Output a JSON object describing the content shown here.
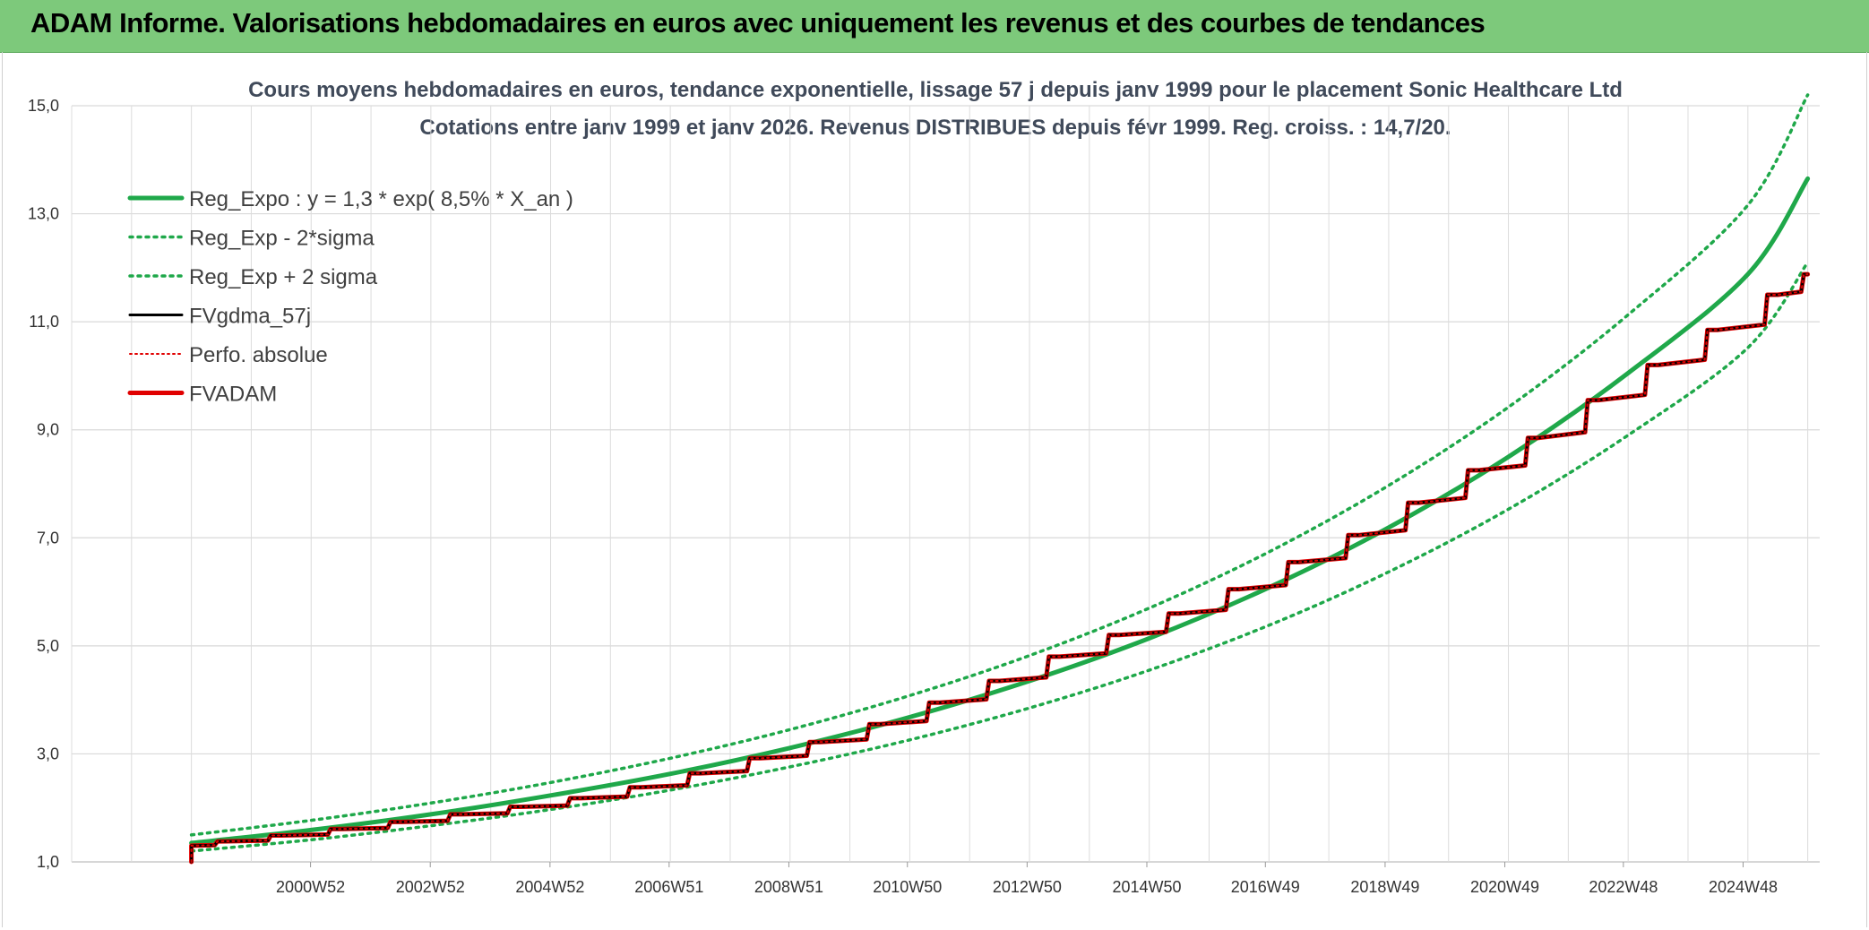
{
  "header": {
    "title": "ADAM Informe. Valorisations hebdomadaires en euros avec uniquement les revenus et des courbes de tendances"
  },
  "chart_data": {
    "type": "line",
    "title": "Cours moyens hebdomadaires en euros, tendance exponentielle, lissage 57 j depuis janv 1999 pour le placement Sonic Healthcare Ltd",
    "subtitle": "Cotations entre janv 1999 et janv 2026. Revenus DISTRIBUES depuis févr 1999. Reg. croiss. : 14,7/20.",
    "xlabel": "",
    "ylabel": "",
    "ylim": [
      1.0,
      15.0
    ],
    "y_ticks": [
      "1,0",
      "3,0",
      "5,0",
      "7,0",
      "9,0",
      "11,0",
      "13,0",
      "15,0"
    ],
    "x_ticks": [
      "2000W52",
      "2002W52",
      "2004W52",
      "2006W51",
      "2008W51",
      "2010W50",
      "2012W50",
      "2014W50",
      "2016W49",
      "2018W49",
      "2020W49",
      "2022W48",
      "2024W48"
    ],
    "x_tick_years": [
      2000.99,
      2002.99,
      2004.99,
      2006.98,
      2008.98,
      2010.96,
      2012.96,
      2014.96,
      2016.94,
      2018.94,
      2020.94,
      2022.92,
      2024.92
    ],
    "x_range": [
      1997.0,
      2026.2
    ],
    "legend_position": "top-left",
    "grid": true,
    "series": [
      {
        "name": "Reg_Expo : y = 1,3 * exp( 8,5% *  X_an )",
        "color": "#1fa84a",
        "style": "solid",
        "x": [
          1999.0,
          2001.0,
          2003.0,
          2005.0,
          2007.0,
          2009.0,
          2011.0,
          2013.0,
          2015.0,
          2017.0,
          2019.0,
          2021.0,
          2023.0,
          2025.0,
          2026.0
        ],
        "y": [
          1.35,
          1.59,
          1.88,
          2.23,
          2.63,
          3.11,
          3.68,
          4.35,
          5.14,
          6.08,
          7.19,
          8.5,
          10.05,
          11.88,
          13.65
        ]
      },
      {
        "name": "Reg_Exp - 2*sigma",
        "color": "#1fa84a",
        "style": "dotted",
        "x": [
          1999.0,
          2001.0,
          2003.0,
          2005.0,
          2007.0,
          2009.0,
          2011.0,
          2013.0,
          2015.0,
          2017.0,
          2019.0,
          2021.0,
          2023.0,
          2025.0,
          2026.0
        ],
        "y": [
          1.2,
          1.41,
          1.67,
          1.97,
          2.33,
          2.76,
          3.26,
          3.85,
          4.55,
          5.38,
          6.37,
          7.53,
          8.9,
          10.52,
          12.1
        ]
      },
      {
        "name": "Reg_Exp + 2 sigma",
        "color": "#1fa84a",
        "style": "dotted",
        "x": [
          1999.0,
          2001.0,
          2003.0,
          2005.0,
          2007.0,
          2009.0,
          2011.0,
          2013.0,
          2015.0,
          2017.0,
          2019.0,
          2021.0,
          2023.0,
          2025.0,
          2026.0
        ],
        "y": [
          1.5,
          1.77,
          2.09,
          2.47,
          2.92,
          3.45,
          4.08,
          4.82,
          5.7,
          6.74,
          7.97,
          9.42,
          11.13,
          13.16,
          15.2
        ]
      },
      {
        "name": "FVgdma_57j",
        "color": "#000000",
        "style": "solid",
        "x": [
          1999.0,
          1999.5,
          2000.5,
          2001.5,
          2002.5,
          2003.5,
          2004.5,
          2005.5,
          2006.5,
          2007.5,
          2008.5,
          2009.5,
          2010.5,
          2011.5,
          2012.5,
          2013.5,
          2014.5,
          2015.5,
          2016.5,
          2017.5,
          2018.5,
          2019.5,
          2020.5,
          2021.5,
          2022.5,
          2023.5,
          2024.5,
          2025.5,
          2026.0
        ],
        "y": [
          1.3,
          1.38,
          1.49,
          1.61,
          1.74,
          1.88,
          2.02,
          2.18,
          2.38,
          2.64,
          2.92,
          3.22,
          3.55,
          3.95,
          4.35,
          4.8,
          5.2,
          5.6,
          6.05,
          6.55,
          7.05,
          7.65,
          8.25,
          8.85,
          9.55,
          10.2,
          10.85,
          11.5,
          11.88
        ]
      },
      {
        "name": "Perfo. absolue",
        "color": "#e00000",
        "style": "dotted",
        "x": [
          1999.0,
          1999.5,
          2000.5,
          2001.5,
          2002.5,
          2003.5,
          2004.5,
          2005.5,
          2006.5,
          2007.5,
          2008.5,
          2009.5,
          2010.5,
          2011.5,
          2012.5,
          2013.5,
          2014.5,
          2015.5,
          2016.5,
          2017.5,
          2018.5,
          2019.5,
          2020.5,
          2021.5,
          2022.5,
          2023.5,
          2024.5,
          2025.5,
          2026.0
        ],
        "y": [
          1.3,
          1.38,
          1.49,
          1.61,
          1.74,
          1.88,
          2.02,
          2.18,
          2.38,
          2.64,
          2.92,
          3.22,
          3.55,
          3.95,
          4.35,
          4.8,
          5.2,
          5.6,
          6.05,
          6.55,
          7.05,
          7.65,
          8.25,
          8.85,
          9.55,
          10.2,
          10.85,
          11.5,
          11.88
        ]
      },
      {
        "name": "FVADAM",
        "color": "#e00000",
        "style": "solid",
        "x": [
          1999.0,
          1999.5,
          2000.5,
          2001.5,
          2002.5,
          2003.5,
          2004.5,
          2005.5,
          2006.5,
          2007.5,
          2008.5,
          2009.5,
          2010.5,
          2011.5,
          2012.5,
          2013.5,
          2014.5,
          2015.5,
          2016.5,
          2017.5,
          2018.5,
          2019.5,
          2020.5,
          2021.5,
          2022.5,
          2023.5,
          2024.5,
          2025.5,
          2026.0
        ],
        "y": [
          1.3,
          1.38,
          1.49,
          1.61,
          1.74,
          1.88,
          2.02,
          2.18,
          2.38,
          2.64,
          2.92,
          3.22,
          3.55,
          3.95,
          4.35,
          4.8,
          5.2,
          5.6,
          6.05,
          6.55,
          7.05,
          7.65,
          8.25,
          8.85,
          9.55,
          10.2,
          10.85,
          11.5,
          11.88
        ]
      }
    ]
  }
}
